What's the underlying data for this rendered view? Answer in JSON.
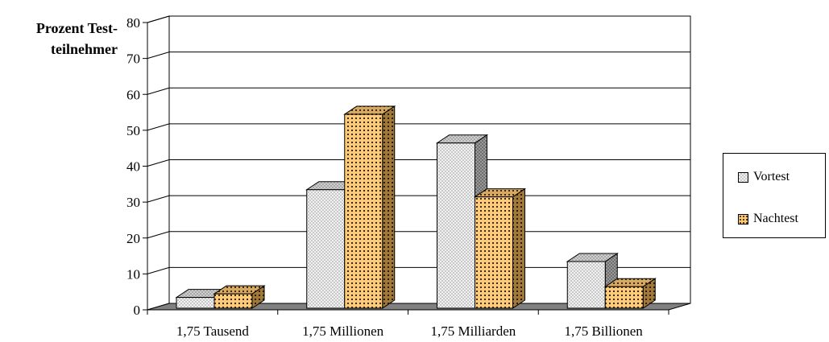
{
  "chart_data": {
    "type": "bar",
    "ylabel": [
      "Prozent Test-",
      "teilnehmer"
    ],
    "categories": [
      "1,75 Tausend",
      "1,75 Millionen",
      "1,75 Milliarden",
      "1,75 Billionen"
    ],
    "series": [
      {
        "name": "Vortest",
        "values": [
          3,
          33,
          46,
          13
        ]
      },
      {
        "name": "Nachtest",
        "values": [
          4,
          54,
          31,
          6
        ]
      }
    ],
    "ylim": [
      0,
      80
    ],
    "yticks": [
      0,
      10,
      20,
      30,
      40,
      50,
      60,
      70,
      80
    ],
    "grid": true,
    "legend_position": "right",
    "colors": {
      "Vortest": "#e8e8e8",
      "Nachtest": "#fcca78",
      "floor": "#808080"
    }
  }
}
